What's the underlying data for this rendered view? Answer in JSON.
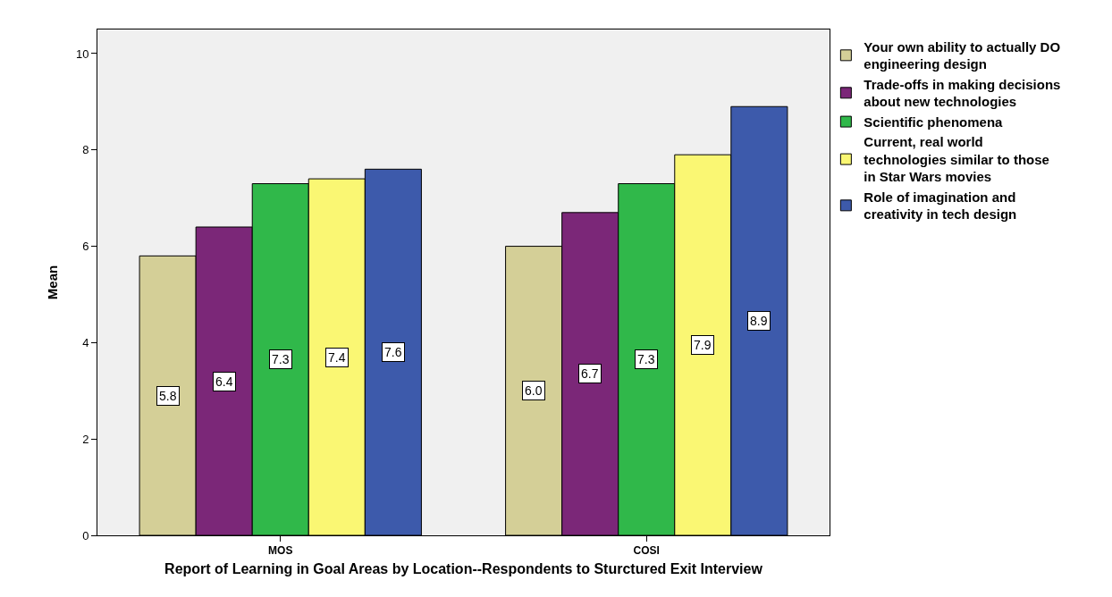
{
  "chart_data": {
    "type": "bar",
    "xlabel": "Report of Learning in Goal Areas by Location--Respondents to Sturctured Exit Interview",
    "ylabel": "Mean",
    "categories": [
      "MOS",
      "COSI"
    ],
    "series": [
      {
        "name": "Your own ability to actually DO engineering design",
        "color": "#d4cf97",
        "values": [
          5.8,
          6.0
        ],
        "value_labels": [
          "5.8",
          "6.0"
        ]
      },
      {
        "name": "Trade-offs in making decisions about new technologies",
        "color": "#7b2778",
        "values": [
          6.4,
          6.7
        ],
        "value_labels": [
          "6.4",
          "6.7"
        ]
      },
      {
        "name": "Scientific phenomena",
        "color": "#30b84a",
        "values": [
          7.3,
          7.3
        ],
        "value_labels": [
          "7.3",
          "7.3"
        ]
      },
      {
        "name": "Current, real world technologies similar to those in Star Wars movies",
        "color": "#faf773",
        "values": [
          7.4,
          7.9
        ],
        "value_labels": [
          "7.4",
          "7.9"
        ]
      },
      {
        "name": "Role of imagination and creativity in tech design",
        "color": "#3d5aab",
        "values": [
          7.6,
          8.9
        ],
        "value_labels": [
          "7.6",
          "8.9"
        ]
      }
    ],
    "ylim": [
      0,
      10.5
    ],
    "yticks": [
      0,
      2,
      4,
      6,
      8,
      10
    ],
    "grid": false,
    "legend": "top right"
  }
}
